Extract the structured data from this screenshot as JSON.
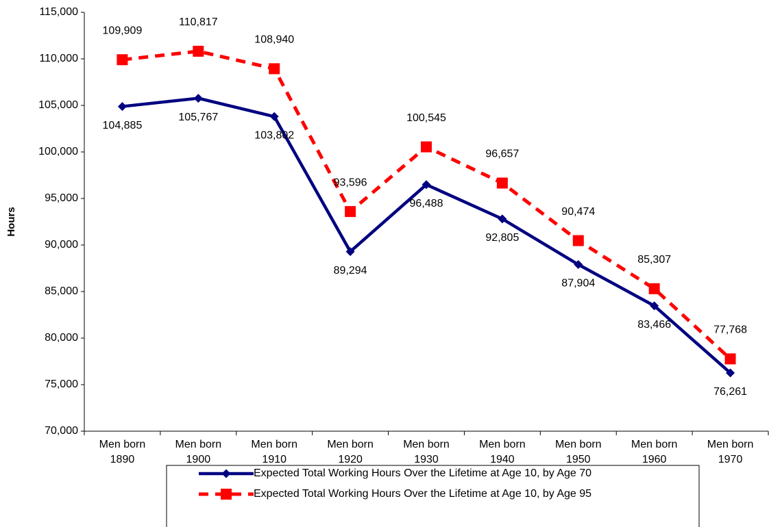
{
  "chart_data": {
    "type": "line",
    "y_label": "Hours",
    "categories": [
      "Men born 1890",
      "Men born 1900",
      "Men born 1910",
      "Men born 1920",
      "Men born 1930",
      "Men born 1940",
      "Men born 1950",
      "Men born 1960",
      "Men born 1970"
    ],
    "series": [
      {
        "name": "Expected Total Working Hours Over the Lifetime at Age 10, by Age 70",
        "color": "#000080",
        "marker": "diamond",
        "dashed": false,
        "values": [
          104885,
          105767,
          103802,
          89294,
          96488,
          92805,
          87904,
          83466,
          76261
        ],
        "value_labels": [
          "104,885",
          "105,767",
          "103,802",
          "89,294",
          "96,488",
          "92,805",
          "87,904",
          "83,466",
          "76,261"
        ]
      },
      {
        "name": "Expected Total Working Hours Over the Lifetime at Age 10, by Age 95",
        "color": "#ff0000",
        "marker": "square",
        "dashed": true,
        "values": [
          109909,
          110817,
          108940,
          93596,
          100545,
          96657,
          90474,
          85307,
          77768
        ],
        "value_labels": [
          "109,909",
          "110,817",
          "108,940",
          "93,596",
          "100,545",
          "96,657",
          "90,474",
          "85,307",
          "77,768"
        ]
      }
    ],
    "ylim": [
      70000,
      115000
    ],
    "yticks": [
      {
        "value": 70000,
        "label": "70,000"
      },
      {
        "value": 75000,
        "label": "75,000"
      },
      {
        "value": 80000,
        "label": "80,000"
      },
      {
        "value": 85000,
        "label": "85,000"
      },
      {
        "value": 90000,
        "label": "90,000"
      },
      {
        "value": 95000,
        "label": "95,000"
      },
      {
        "value": 100000,
        "label": "100,000"
      },
      {
        "value": 105000,
        "label": "105,000"
      },
      {
        "value": 110000,
        "label": "110,000"
      },
      {
        "value": 115000,
        "label": "115,000"
      }
    ],
    "grid": false
  }
}
